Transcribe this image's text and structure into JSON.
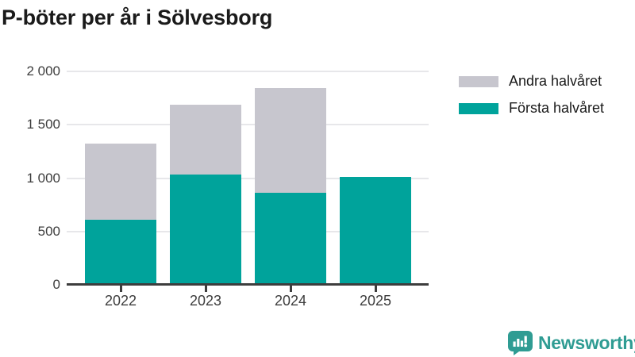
{
  "title": "P-böter per år i Sölvesborg",
  "legend": {
    "items": [
      {
        "label": "Andra halvåret",
        "color": "#c7c6ce"
      },
      {
        "label": "Första halvåret",
        "color": "#00a39b"
      }
    ]
  },
  "chart_data": {
    "type": "bar",
    "stacked": true,
    "title": "P-böter per år i Sölvesborg",
    "categories": [
      "2022",
      "2023",
      "2024",
      "2025"
    ],
    "series": [
      {
        "name": "Första halvåret",
        "color": "#00a39b",
        "values": [
          610,
          1035,
          865,
          1010
        ]
      },
      {
        "name": "Andra halvåret",
        "color": "#c7c6ce",
        "values": [
          710,
          655,
          980,
          0
        ]
      }
    ],
    "xlabel": "",
    "ylabel": "",
    "ylim": [
      0,
      2000
    ],
    "yticks": [
      {
        "value": 0,
        "label": "0"
      },
      {
        "value": 500,
        "label": "500"
      },
      {
        "value": 1000,
        "label": "1 000"
      },
      {
        "value": 1500,
        "label": "1 500"
      },
      {
        "value": 2000,
        "label": "2 000"
      }
    ],
    "grid": "horizontal",
    "legend_position": "right-top"
  },
  "branding": {
    "logo_text": "Newsworthy",
    "logo_icon": "newsworthy-speech-bubble-bar-chart-icon",
    "logo_color": "#2f9c93"
  },
  "colors": {
    "first_half": "#00a39b",
    "second_half": "#c7c6ce",
    "axis": "#3d3d3d",
    "grid": "#e7e7ea",
    "title_text": "#1a1a1a",
    "background": "#ffffff"
  }
}
